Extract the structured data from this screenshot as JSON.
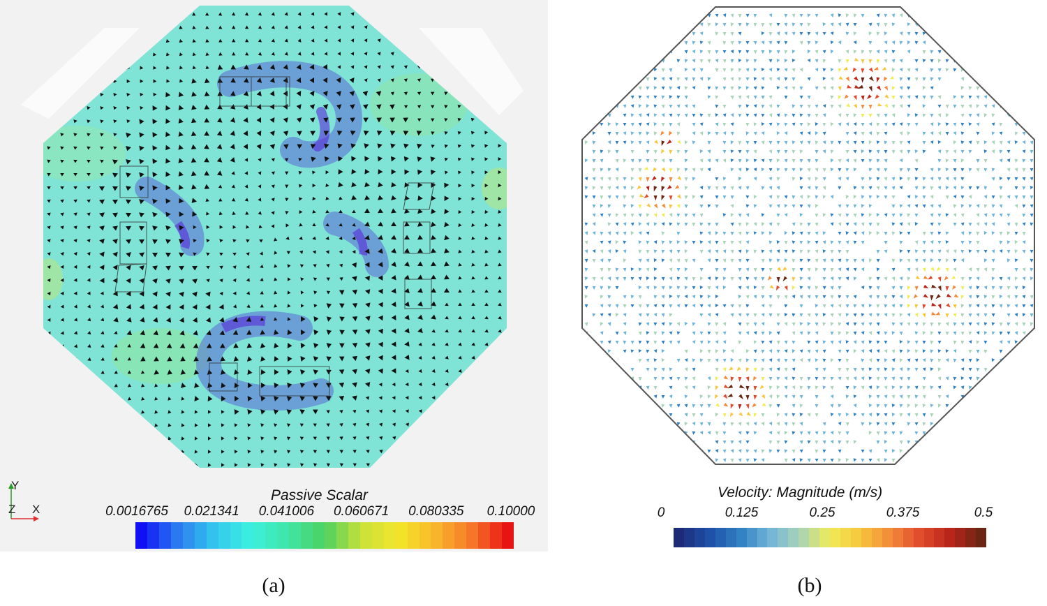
{
  "panel_a": {
    "caption": "(a)",
    "colorbar_title": "Passive Scalar",
    "colorbar_ticks": [
      "0.0016765",
      "0.021341",
      "0.041006",
      "0.060671",
      "0.080335",
      "0.10000"
    ],
    "colorbar_colors": [
      "#1010f5",
      "#2c7df0",
      "#33c7ee",
      "#3cf0e0",
      "#40e6a8",
      "#4cd060",
      "#c8e13a",
      "#f4e62a",
      "#f8b82a",
      "#f6782a",
      "#e81414"
    ],
    "axes": {
      "y": "Y",
      "z": "Z",
      "x": "X"
    }
  },
  "panel_b": {
    "caption": "(b)",
    "colorbar_title": "Velocity: Magnitude (m/s)",
    "colorbar_ticks": [
      "0",
      "0.125",
      "0.25",
      "0.375",
      "0.5"
    ],
    "colorbar_colors": [
      "#1c2a78",
      "#1f4fa8",
      "#2f7fc2",
      "#6fb4d8",
      "#a8d3b8",
      "#f0ec58",
      "#f6c63c",
      "#f28a3a",
      "#e04a2c",
      "#b8241a",
      "#6a2612"
    ]
  }
}
